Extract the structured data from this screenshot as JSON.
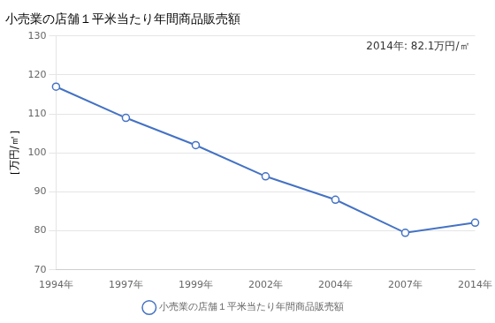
{
  "chart_data": {
    "type": "line",
    "title": "小売業の店舗１平米当たり年間商品販売額",
    "ylabel": "［万円/㎡］",
    "annotation": "2014年: 82.1万円/㎡",
    "categories": [
      "1994年",
      "1997年",
      "1999年",
      "2002年",
      "2004年",
      "2007年",
      "2014年"
    ],
    "series": [
      {
        "name": "小売業の店舗１平米当たり年間商品販売額",
        "color": "#4472C4",
        "marker": "circle",
        "values": [
          117.0,
          109.0,
          102.0,
          94.0,
          88.0,
          79.5,
          82.1
        ]
      }
    ],
    "ylim": [
      70,
      130
    ],
    "yticks": [
      70,
      80,
      90,
      100,
      110,
      120,
      130
    ],
    "grid": true,
    "legend": "bottom"
  }
}
